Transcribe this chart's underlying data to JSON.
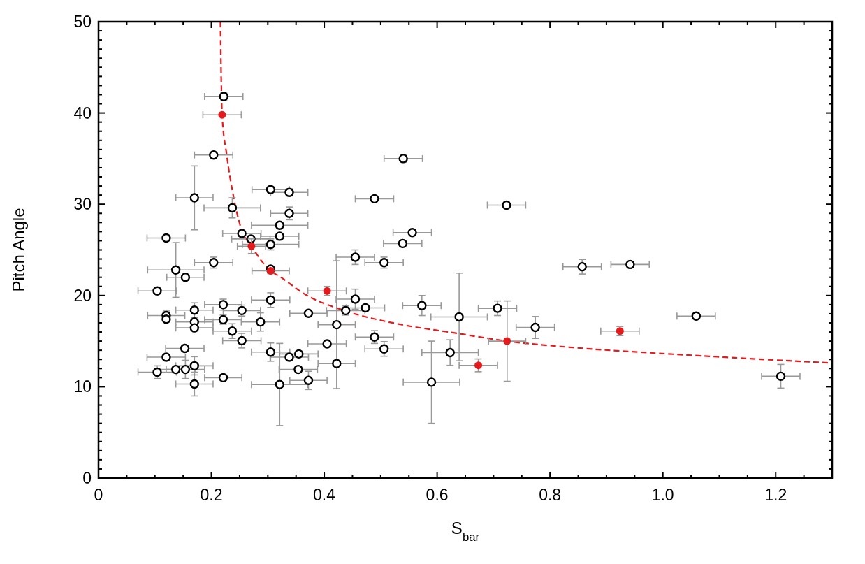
{
  "chart_data": {
    "type": "scatter",
    "xlabel": "S$_{bar}$",
    "ylabel": "Pitch Angle",
    "xlim": [
      0,
      1.3
    ],
    "xticks": [
      0,
      {
        "value": 0.05,
        "label": null
      },
      {
        "value": 0.1,
        "label": null
      },
      {
        "value": 0.15,
        "label": null
      },
      0.2,
      {
        "value": 0.25,
        "label": null
      },
      {
        "value": 0.3,
        "label": null
      },
      {
        "value": 0.35,
        "label": null
      },
      0.4,
      {
        "value": 0.45,
        "label": null
      },
      {
        "value": 0.5,
        "label": null
      },
      {
        "value": 0.55,
        "label": null
      },
      0.6,
      {
        "value": 0.65,
        "label": null
      },
      {
        "value": 0.7,
        "label": null
      },
      {
        "value": 0.75,
        "label": null
      },
      0.8,
      {
        "value": 0.85,
        "label": null
      },
      {
        "value": 0.9,
        "label": null
      },
      {
        "value": 0.95,
        "label": null
      },
      {
        "value": 1,
        "label": "1.0"
      },
      {
        "value": 1.05,
        "label": null
      },
      {
        "value": 1.1,
        "label": null
      },
      {
        "value": 1.15,
        "label": null
      },
      1.2,
      {
        "value": 1.25,
        "label": null
      },
      {
        "value": 1.3,
        "label": null
      }
    ],
    "ylim": [
      0,
      50
    ],
    "yticks": [
      0,
      {
        "value": 1,
        "label": null
      },
      {
        "value": 2,
        "label": null
      },
      {
        "value": 3,
        "label": null
      },
      {
        "value": 4,
        "label": null
      },
      {
        "value": 5,
        "label": null
      },
      {
        "value": 6,
        "label": null
      },
      {
        "value": 7,
        "label": null
      },
      {
        "value": 8,
        "label": null
      },
      {
        "value": 9,
        "label": null
      },
      10,
      {
        "value": 11,
        "label": null
      },
      {
        "value": 12,
        "label": null
      },
      {
        "value": 13,
        "label": null
      },
      {
        "value": 14,
        "label": null
      },
      {
        "value": 15,
        "label": null
      },
      {
        "value": 16,
        "label": null
      },
      {
        "value": 17,
        "label": null
      },
      {
        "value": 18,
        "label": null
      },
      {
        "value": 19,
        "label": null
      },
      20,
      {
        "value": 21,
        "label": null
      },
      {
        "value": 22,
        "label": null
      },
      {
        "value": 23,
        "label": null
      },
      {
        "value": 24,
        "label": null
      },
      {
        "value": 25,
        "label": null
      },
      {
        "value": 26,
        "label": null
      },
      {
        "value": 27,
        "label": null
      },
      {
        "value": 28,
        "label": null
      },
      {
        "value": 29,
        "label": null
      },
      30,
      {
        "value": 31,
        "label": null
      },
      {
        "value": 32,
        "label": null
      },
      {
        "value": 33,
        "label": null
      },
      {
        "value": 34,
        "label": null
      },
      {
        "value": 35,
        "label": null
      },
      {
        "value": 36,
        "label": null
      },
      {
        "value": 37,
        "label": null
      },
      {
        "value": 38,
        "label": null
      },
      {
        "value": 39,
        "label": null
      },
      40,
      {
        "value": 41,
        "label": null
      },
      {
        "value": 42,
        "label": null
      },
      {
        "value": 43,
        "label": null
      },
      {
        "value": 44,
        "label": null
      },
      {
        "value": 45,
        "label": null
      },
      {
        "value": 46,
        "label": null
      },
      {
        "value": 47,
        "label": null
      },
      {
        "value": 48,
        "label": null
      },
      {
        "value": 49,
        "label": null
      },
      50
    ],
    "grid": false,
    "series": [
      {
        "type": "line",
        "color": "#e41a1c",
        "marker": "none",
        "line_style": "dashed",
        "x": [
          0.216,
          0.219,
          0.227,
          0.239,
          0.253,
          0.271,
          0.305,
          0.323,
          0.364,
          0.438,
          0.529,
          0.631,
          0.724,
          0.841,
          1.038,
          1.3
        ],
        "values": [
          50,
          39.8,
          35.5,
          30.9,
          27.3,
          25.4,
          22.7,
          22.0,
          20.2,
          18.3,
          16.9,
          15.9,
          15.0,
          14.3,
          13.5,
          12.6
        ]
      },
      {
        "type": "scatter",
        "color": "#000000",
        "marker": "circle",
        "x": [
          0.222,
          0.204,
          0.17,
          0.305,
          0.338,
          0.237,
          0.338,
          0.321,
          0.254,
          0.27,
          0.321,
          0.305,
          0.12,
          0.204,
          0.137,
          0.154,
          0.305,
          0.104,
          0.305,
          0.17,
          0.221,
          0.254,
          0.372,
          0.12,
          0.12,
          0.17,
          0.221,
          0.287,
          0.17,
          0.237,
          0.254,
          0.153,
          0.305,
          0.12,
          0.338,
          0.355,
          0.354,
          0.104,
          0.137,
          0.154,
          0.17,
          0.17,
          0.221,
          0.321,
          0.372,
          0.54,
          0.489,
          0.723,
          0.556,
          0.539,
          0.455,
          0.506,
          0.455,
          0.473,
          0.438,
          0.422,
          0.573,
          0.639,
          0.707,
          0.774,
          0.489,
          0.506,
          0.405,
          0.623,
          0.422,
          0.59,
          0.857,
          0.942,
          1.059,
          1.209
        ],
        "values": [
          41.8,
          35.4,
          30.7,
          31.6,
          31.3,
          29.6,
          29.0,
          27.7,
          26.8,
          26.2,
          26.5,
          25.6,
          26.3,
          23.6,
          22.8,
          22.0,
          22.9,
          20.5,
          19.5,
          18.4,
          19.0,
          18.35,
          18.05,
          17.8,
          17.4,
          17.1,
          17.35,
          17.1,
          16.45,
          16.1,
          15.05,
          14.2,
          13.8,
          13.25,
          13.25,
          13.6,
          11.9,
          11.6,
          11.9,
          11.9,
          12.3,
          10.3,
          11.0,
          10.25,
          10.7,
          35.0,
          30.6,
          29.9,
          26.9,
          25.7,
          24.2,
          23.6,
          19.6,
          18.65,
          18.35,
          16.8,
          18.9,
          17.65,
          18.6,
          16.5,
          15.45,
          14.15,
          14.7,
          13.75,
          12.55,
          10.5,
          23.15,
          23.4,
          17.75,
          11.15
        ],
        "xerrors": [
          0.034,
          0.034,
          0.033,
          0.033,
          0.033,
          0.05,
          0.033,
          0.05,
          0.034,
          0.034,
          0.034,
          0.05,
          0.034,
          0.034,
          0.05,
          0.033,
          null,
          0.034,
          0.034,
          0.033,
          0.033,
          0.033,
          0.033,
          0.033,
          null,
          0.033,
          0.033,
          0.034,
          0.033,
          0.034,
          0.034,
          0.034,
          0.034,
          0.034,
          0.034,
          0.034,
          0.034,
          0.034,
          0.034,
          0.034,
          0.033,
          0.033,
          0.033,
          0.05,
          0.033,
          0.034,
          0.034,
          0.034,
          0.034,
          0.034,
          0.034,
          0.034,
          0.034,
          0.034,
          0.034,
          0.033,
          0.034,
          0.05,
          0.034,
          0.034,
          0.034,
          0.034,
          0.034,
          0.05,
          0.033,
          0.05,
          0.034,
          0.034,
          0.034,
          0.034
        ],
        "errors": [
          0.4,
          0.3,
          3.5,
          0.3,
          0.4,
          1.1,
          0.7,
          0.3,
          0.3,
          0.3,
          0.3,
          0.6,
          0.3,
          0.6,
          3.0,
          0.3,
          0.3,
          0.3,
          0.8,
          0.8,
          0.6,
          0.6,
          0.3,
          0.5,
          null,
          0.5,
          0.5,
          1.0,
          0.3,
          0.8,
          0.8,
          0.3,
          1.0,
          0.3,
          0.3,
          0.3,
          0.3,
          0.7,
          0.3,
          1.0,
          1.0,
          1.3,
          0.3,
          4.5,
          1.0,
          0.4,
          0.3,
          0.3,
          0.3,
          0.3,
          0.8,
          0.6,
          1.1,
          0.3,
          0.5,
          7.0,
          1.1,
          4.8,
          0.8,
          1.2,
          0.7,
          0.8,
          0.3,
          1.4,
          0.3,
          4.5,
          0.8,
          0.3,
          0.3,
          1.3
        ]
      },
      {
        "type": "scatter",
        "color": "#e41a1c",
        "marker": "circle",
        "x": [
          0.219,
          0.271,
          0.305,
          0.405,
          0.673,
          0.724,
          0.924
        ],
        "values": [
          39.8,
          25.4,
          22.7,
          20.5,
          12.35,
          15.0,
          16.1
        ],
        "xerrors": [
          0.034,
          0.025,
          0.033,
          0.034,
          0.034,
          0.033,
          0.034
        ],
        "errors": [
          null,
          0.8,
          0.3,
          0.5,
          0.7,
          4.4,
          0.5
        ]
      }
    ]
  }
}
